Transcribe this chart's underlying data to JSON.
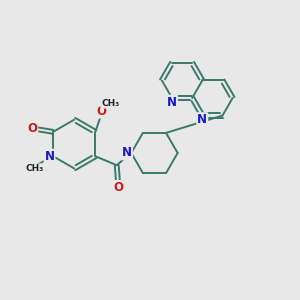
{
  "bg_color": "#e8e8e8",
  "bond_color": "#3a7a6a",
  "bond_width": 1.4,
  "N_color": "#1818cc",
  "O_color": "#cc1818",
  "fig_width": 3.0,
  "fig_height": 3.0,
  "dpi": 100,
  "xlim": [
    0,
    10
  ],
  "ylim": [
    0,
    10
  ]
}
